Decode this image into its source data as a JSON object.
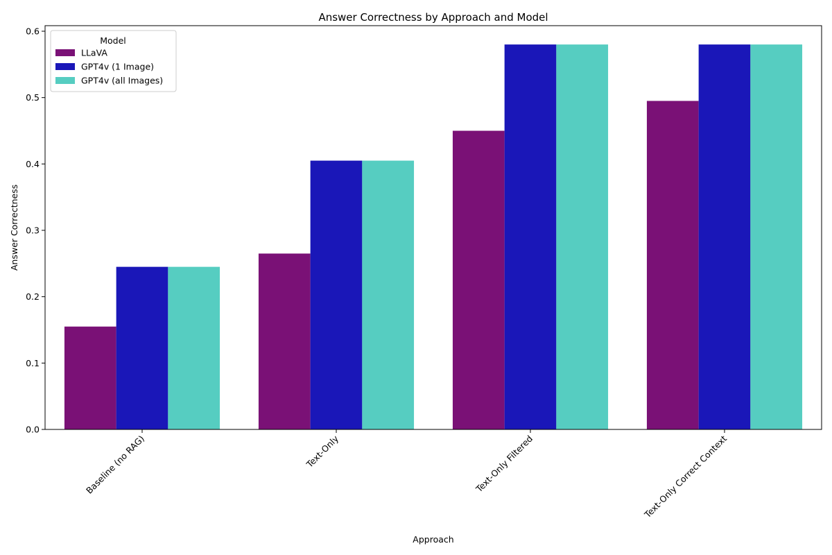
{
  "chart_data": {
    "type": "bar",
    "title": "Answer Correctness by Approach and Model",
    "xlabel": "Approach",
    "ylabel": "Answer Correctness",
    "categories": [
      "Baseline (no RAG)",
      "Text-Only",
      "Text-Only Filtered",
      "Text-Only Correct Context"
    ],
    "series": [
      {
        "name": "LLaVA",
        "color": "#7a1176",
        "values": [
          0.155,
          0.265,
          0.45,
          0.495
        ]
      },
      {
        "name": "GPT4v (1 Image)",
        "color": "#1a17b8",
        "values": [
          0.245,
          0.405,
          0.58,
          0.58
        ]
      },
      {
        "name": "GPT4v (all Images)",
        "color": "#56cdc1",
        "values": [
          0.245,
          0.405,
          0.58,
          0.58
        ]
      }
    ],
    "ylim": [
      0,
      0.6
    ],
    "yticks": [
      "0.0",
      "0.1",
      "0.2",
      "0.3",
      "0.4",
      "0.5",
      "0.6"
    ],
    "grid": false,
    "legend": {
      "title": "Model",
      "placement": "top-left"
    }
  }
}
